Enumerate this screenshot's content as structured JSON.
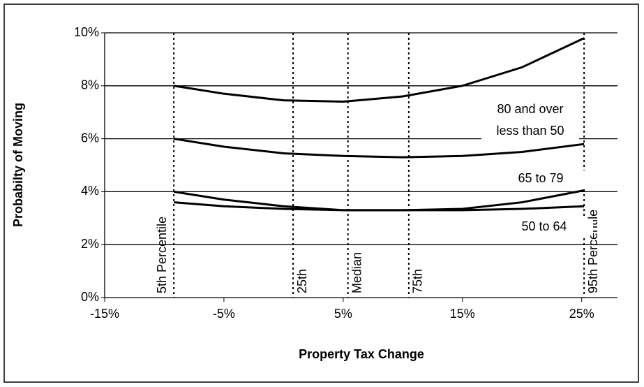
{
  "chart_data": {
    "type": "line",
    "x_label": "Property Tax Change",
    "y_label": "Probabilty of Moving",
    "x": [
      -9.2,
      -5,
      0,
      5,
      10,
      15,
      20,
      25.2
    ],
    "series": [
      {
        "name": "80 and over",
        "color": "#000000",
        "values": [
          8.0,
          7.7,
          7.45,
          7.4,
          7.6,
          8.0,
          8.7,
          9.8
        ]
      },
      {
        "name": "less than 50",
        "color": "#000000",
        "values": [
          6.0,
          5.7,
          5.45,
          5.35,
          5.3,
          5.35,
          5.5,
          5.8
        ]
      },
      {
        "name": "65 to 79",
        "color": "#000000",
        "values": [
          4.0,
          3.7,
          3.45,
          3.3,
          3.3,
          3.35,
          3.6,
          4.05
        ]
      },
      {
        "name": "50 to 64",
        "color": "#000000",
        "values": [
          3.6,
          3.45,
          3.35,
          3.3,
          3.3,
          3.3,
          3.35,
          3.45
        ]
      }
    ],
    "reference_lines": [
      {
        "value": -9.2,
        "label": "5th Percentile"
      },
      {
        "value": 0.8,
        "label": "25th"
      },
      {
        "value": 5.4,
        "label": "Median"
      },
      {
        "value": 10.5,
        "label": "75th"
      },
      {
        "value": 25.2,
        "label": "95th Percentile"
      }
    ],
    "xlim": [
      -15,
      28
    ],
    "xticks": [
      {
        "value": -15,
        "label": "-15%"
      },
      {
        "value": -5,
        "label": "-5%"
      },
      {
        "value": 5,
        "label": "5%"
      },
      {
        "value": 15,
        "label": "15%"
      },
      {
        "value": 25,
        "label": "25%"
      }
    ],
    "ylim": [
      0,
      10
    ],
    "yticks": [
      {
        "value": 0,
        "label": "0%"
      },
      {
        "value": 2,
        "label": "2%"
      },
      {
        "value": 4,
        "label": "4%"
      },
      {
        "value": 6,
        "label": "6%"
      },
      {
        "value": 8,
        "label": "8%"
      },
      {
        "value": 10,
        "label": "10%"
      }
    ],
    "grid": true
  }
}
